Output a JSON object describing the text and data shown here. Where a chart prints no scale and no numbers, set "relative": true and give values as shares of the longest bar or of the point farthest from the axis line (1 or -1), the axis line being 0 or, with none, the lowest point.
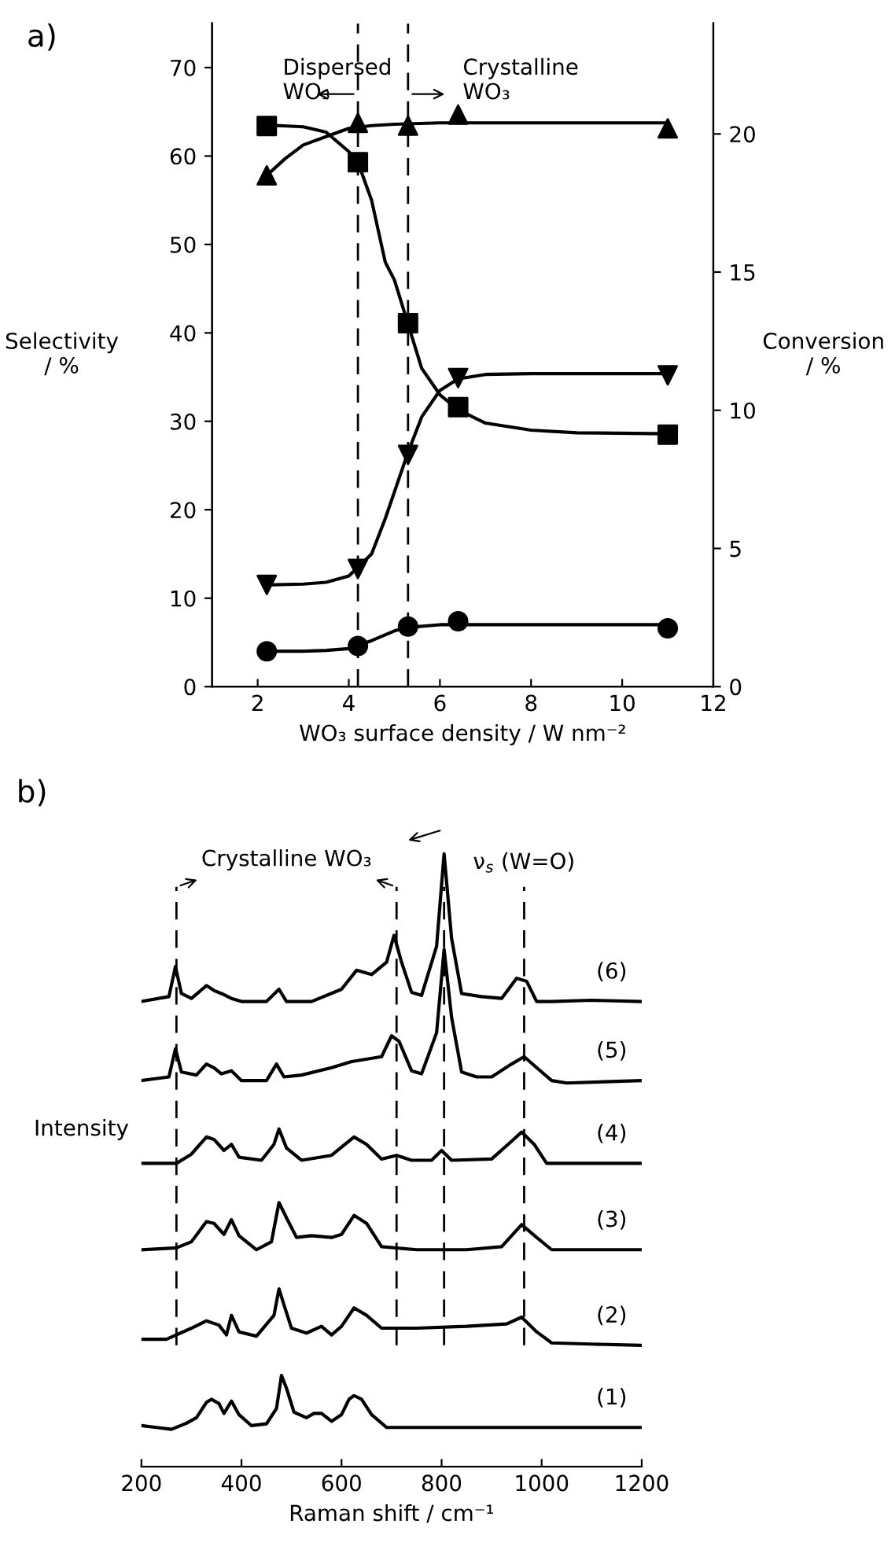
{
  "chart_data": [
    {
      "type": "scatter",
      "title": "a)",
      "xlabel": "WO₃ surface density / W nm⁻²",
      "ylabel": "Selectivity\n/ %",
      "y2label": "Conversion\n/ %",
      "xlim": [
        1,
        12
      ],
      "xticks": [
        2,
        4,
        6,
        8,
        10,
        12
      ],
      "ylim": [
        0,
        75
      ],
      "yticks": [
        0,
        10,
        20,
        30,
        40,
        50,
        60,
        70
      ],
      "y2lim": [
        0,
        24
      ],
      "y2ticks": [
        0,
        5,
        10,
        15,
        20
      ],
      "grid": false,
      "legend": false,
      "ref_lines": [
        {
          "axis": "x",
          "value": 4.2,
          "line_style": "dashed",
          "color": "#000000"
        },
        {
          "axis": "x",
          "value": 5.3,
          "line_style": "dashed",
          "color": "#000000"
        }
      ],
      "annotations": [
        {
          "text": "Dispersed\nWO₃",
          "x": 4.2,
          "y": 67
        },
        {
          "text": "Crystalline\nWO₃",
          "x": 5.3,
          "y": 67
        }
      ],
      "series": [
        {
          "type": "scatter",
          "marker": "square",
          "color": "#000000",
          "x": [
            2.2,
            4.2,
            5.3,
            6.4,
            11
          ],
          "values": [
            63.4,
            59.3,
            41.1,
            31.6,
            28.5
          ]
        },
        {
          "type": "line",
          "marker": "none",
          "color": "#000000",
          "x": [
            2.2,
            3,
            3.5,
            4,
            4.2,
            4.5,
            4.8,
            5,
            5.3,
            5.6,
            6,
            6.4,
            7,
            8,
            9,
            11
          ],
          "values": [
            63.5,
            63.3,
            62.7,
            60.5,
            59.3,
            55,
            48,
            46,
            41,
            36,
            33,
            31.3,
            29.8,
            29,
            28.7,
            28.6
          ]
        },
        {
          "type": "scatter",
          "marker": "triangle",
          "color": "#000000",
          "axis": "y2",
          "x": [
            2.2,
            4.2,
            5.3,
            6.4,
            11
          ],
          "values": [
            18.5,
            20.4,
            20.3,
            20.7,
            20.2
          ]
        },
        {
          "type": "line",
          "marker": "none",
          "color": "#000000",
          "axis": "y2",
          "x": [
            2.2,
            2.6,
            3,
            3.5,
            4,
            4.5,
            5,
            6,
            8,
            11
          ],
          "values": [
            18.5,
            19.1,
            19.6,
            19.9,
            20.2,
            20.3,
            20.35,
            20.4,
            20.4,
            20.4
          ]
        },
        {
          "type": "scatter",
          "marker": "triangle_down",
          "color": "#000000",
          "x": [
            2.2,
            4.2,
            5.3,
            6.4,
            11
          ],
          "values": [
            11.5,
            13.3,
            26.2,
            34.9,
            35.2
          ]
        },
        {
          "type": "line",
          "marker": "none",
          "color": "#000000",
          "x": [
            2.2,
            3,
            3.5,
            4,
            4.5,
            4.8,
            5.1,
            5.3,
            5.6,
            6,
            6.4,
            7,
            8,
            11
          ],
          "values": [
            11.5,
            11.6,
            11.8,
            12.5,
            15,
            19,
            23.5,
            26.5,
            30.5,
            33.5,
            34.8,
            35.3,
            35.4,
            35.4
          ]
        },
        {
          "type": "scatter",
          "marker": "circle",
          "color": "#000000",
          "x": [
            2.2,
            4.2,
            5.3,
            6.4,
            11
          ],
          "values": [
            4.0,
            4.6,
            6.8,
            7.4,
            6.6
          ]
        },
        {
          "type": "line",
          "marker": "none",
          "color": "#000000",
          "x": [
            2.2,
            3,
            3.5,
            4,
            4.5,
            5,
            5.3,
            6,
            8,
            11
          ],
          "values": [
            4.0,
            4.0,
            4.1,
            4.3,
            5.2,
            6.3,
            6.7,
            7.0,
            7.0,
            7.0
          ]
        }
      ]
    },
    {
      "type": "line",
      "title": "b)",
      "xlabel": "Raman shift / cm⁻¹",
      "ylabel": "Intensity",
      "relative": true,
      "tick_labels": "x",
      "grid": false,
      "legend": false,
      "marker": "none",
      "line_style": "solid",
      "xlim": [
        200,
        1200
      ],
      "xticks": [
        200,
        400,
        600,
        800,
        1000,
        1200
      ],
      "ref_lines": [
        {
          "axis": "x",
          "value": 270,
          "line_style": "dashed",
          "color": "#000000"
        },
        {
          "axis": "x",
          "value": 710,
          "line_style": "dashed",
          "color": "#000000"
        },
        {
          "axis": "x",
          "value": 805,
          "line_style": "dashed",
          "color": "#000000"
        },
        {
          "axis": "x",
          "value": 965,
          "line_style": "dashed",
          "color": "#000000"
        }
      ],
      "annotations": [
        "Crystalline WO₃",
        "ν$_{s}$ (W=O)"
      ],
      "series": [
        {
          "name": "(1)",
          "color": "#000000",
          "x": [
            200,
            230,
            260,
            290,
            310,
            330,
            340,
            355,
            365,
            380,
            395,
            420,
            450,
            470,
            480,
            490,
            505,
            530,
            545,
            560,
            580,
            600,
            615,
            625,
            640,
            660,
            690,
            750,
            800,
            900,
            1000,
            1100,
            1200
          ],
          "values": [
            0.067,
            0.064,
            0.061,
            0.071,
            0.08,
            0.105,
            0.11,
            0.103,
            0.087,
            0.107,
            0.085,
            0.067,
            0.07,
            0.095,
            0.149,
            0.128,
            0.089,
            0.08,
            0.087,
            0.087,
            0.074,
            0.085,
            0.11,
            0.116,
            0.11,
            0.085,
            0.064,
            0.064,
            0.064,
            0.064,
            0.064,
            0.064,
            0.064
          ]
        },
        {
          "name": "(2)",
          "color": "#000000",
          "x": [
            200,
            250,
            300,
            330,
            355,
            370,
            380,
            395,
            430,
            465,
            475,
            485,
            500,
            530,
            560,
            580,
            600,
            625,
            650,
            680,
            750,
            850,
            930,
            960,
            990,
            1020,
            1100,
            1200
          ],
          "values": [
            0.208,
            0.208,
            0.226,
            0.238,
            0.231,
            0.215,
            0.247,
            0.22,
            0.213,
            0.247,
            0.29,
            0.264,
            0.226,
            0.218,
            0.229,
            0.215,
            0.229,
            0.259,
            0.247,
            0.226,
            0.226,
            0.229,
            0.233,
            0.244,
            0.22,
            0.202,
            0.2,
            0.198
          ]
        },
        {
          "name": "(3)",
          "color": "#000000",
          "x": [
            200,
            270,
            300,
            330,
            345,
            365,
            380,
            395,
            430,
            460,
            475,
            490,
            510,
            540,
            580,
            600,
            625,
            650,
            680,
            750,
            850,
            920,
            960,
            990,
            1020,
            1200
          ],
          "values": [
            0.354,
            0.357,
            0.367,
            0.4,
            0.397,
            0.379,
            0.403,
            0.377,
            0.354,
            0.367,
            0.431,
            0.406,
            0.374,
            0.377,
            0.374,
            0.379,
            0.41,
            0.397,
            0.359,
            0.354,
            0.354,
            0.359,
            0.395,
            0.374,
            0.354,
            0.354
          ]
        },
        {
          "name": "(4)",
          "color": "#000000",
          "x": [
            200,
            270,
            300,
            330,
            345,
            365,
            380,
            395,
            440,
            465,
            475,
            490,
            520,
            580,
            625,
            650,
            680,
            710,
            740,
            780,
            800,
            820,
            900,
            940,
            960,
            985,
            1010,
            1200
          ],
          "values": [
            0.495,
            0.495,
            0.51,
            0.538,
            0.534,
            0.516,
            0.526,
            0.505,
            0.5,
            0.526,
            0.551,
            0.52,
            0.5,
            0.508,
            0.538,
            0.526,
            0.502,
            0.508,
            0.5,
            0.5,
            0.516,
            0.5,
            0.502,
            0.531,
            0.546,
            0.526,
            0.495,
            0.495
          ]
        },
        {
          "name": "(5)",
          "color": "#000000",
          "x": [
            200,
            255,
            268,
            280,
            310,
            330,
            345,
            360,
            380,
            400,
            450,
            470,
            485,
            520,
            580,
            620,
            680,
            700,
            715,
            740,
            760,
            790,
            805,
            820,
            840,
            870,
            900,
            940,
            965,
            990,
            1020,
            1050,
            1200
          ],
          "values": [
            0.63,
            0.636,
            0.682,
            0.644,
            0.639,
            0.657,
            0.651,
            0.641,
            0.646,
            0.63,
            0.63,
            0.657,
            0.636,
            0.639,
            0.651,
            0.661,
            0.669,
            0.703,
            0.694,
            0.646,
            0.641,
            0.708,
            0.844,
            0.733,
            0.644,
            0.636,
            0.636,
            0.657,
            0.669,
            0.651,
            0.63,
            0.626,
            0.63
          ]
        },
        {
          "name": "(6)",
          "color": "#000000",
          "x": [
            200,
            255,
            268,
            280,
            300,
            330,
            345,
            360,
            380,
            400,
            450,
            475,
            490,
            540,
            600,
            630,
            660,
            690,
            705,
            720,
            740,
            760,
            790,
            805,
            820,
            840,
            880,
            920,
            950,
            970,
            990,
            1020,
            1100,
            1200
          ],
          "values": [
            0.759,
            0.767,
            0.816,
            0.772,
            0.764,
            0.785,
            0.777,
            0.772,
            0.764,
            0.759,
            0.759,
            0.779,
            0.759,
            0.759,
            0.779,
            0.81,
            0.803,
            0.823,
            0.867,
            0.823,
            0.774,
            0.769,
            0.849,
            1.0,
            0.862,
            0.772,
            0.767,
            0.764,
            0.797,
            0.792,
            0.759,
            0.759,
            0.761,
            0.759
          ]
        }
      ]
    }
  ]
}
